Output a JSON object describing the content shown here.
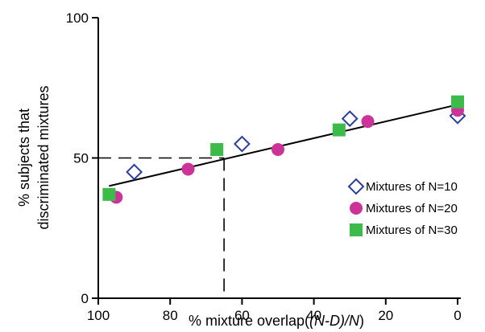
{
  "chart_data": {
    "type": "scatter",
    "xlabel_prefix": "% mixture overlap(",
    "xlabel_italic": "(N-D)/N",
    "xlabel_suffix": ")",
    "ylabel_line1": "% subjects that",
    "ylabel_line2": "discriminated mixtures",
    "xlim": [
      100,
      0
    ],
    "ylim": [
      0,
      100
    ],
    "x_ticks": [
      100,
      80,
      60,
      40,
      20,
      0
    ],
    "y_ticks": [
      0,
      50,
      100
    ],
    "grid": false,
    "legend_position": "lower-right",
    "series": [
      {
        "name": "Mixtures of N=10",
        "marker": "diamond-open",
        "color": "#2b3d9e",
        "x": [
          90,
          60,
          30,
          0
        ],
        "y": [
          45,
          55,
          64,
          65
        ]
      },
      {
        "name": "Mixtures of N=20",
        "marker": "circle",
        "color": "#cc3399",
        "x": [
          95,
          75,
          50,
          25,
          0
        ],
        "y": [
          36,
          46,
          53,
          63,
          67
        ]
      },
      {
        "name": "Mixtures of N=30",
        "marker": "square",
        "color": "#3dbb4a",
        "x": [
          97,
          67,
          33,
          0
        ],
        "y": [
          37,
          53,
          60,
          70
        ]
      }
    ],
    "fit_line": {
      "x": [
        97,
        0
      ],
      "y": [
        40,
        69
      ],
      "color": "#000000"
    },
    "reference_lines": {
      "y": 50,
      "x": 65
    }
  }
}
